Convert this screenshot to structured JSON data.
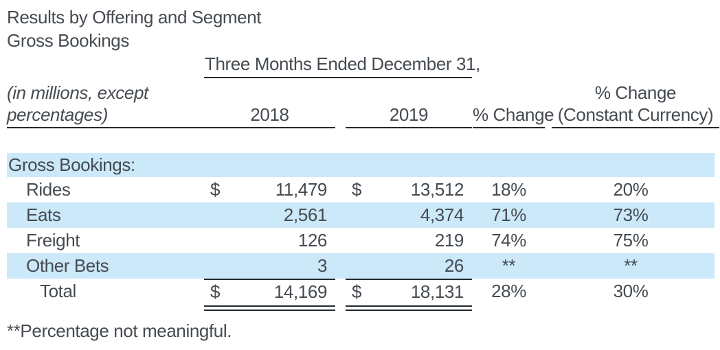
{
  "page": {
    "title": "Results by Offering and Segment",
    "subtitle": "Gross Bookings",
    "footnote": "**Percentage not meaningful."
  },
  "table": {
    "period_header": "Three Months Ended December 31,",
    "unit_note_line1": "(in millions, except",
    "unit_note_line2": "percentages)",
    "col_2018": "2018",
    "col_2019": "2019",
    "col_pct_change": "% Change",
    "col_cc_line1": "% Change",
    "col_cc_line2": "(Constant Currency)",
    "section_label": "Gross Bookings:",
    "currency_symbol": "$",
    "rows": [
      {
        "label": "Rides",
        "y2018": "11,479",
        "y2019": "13,512",
        "pct_change": "18%",
        "pct_change_cc": "20%"
      },
      {
        "label": "Eats",
        "y2018": "2,561",
        "y2019": "4,374",
        "pct_change": "71%",
        "pct_change_cc": "73%"
      },
      {
        "label": "Freight",
        "y2018": "126",
        "y2019": "219",
        "pct_change": "74%",
        "pct_change_cc": "75%"
      },
      {
        "label": "Other Bets",
        "y2018": "3",
        "y2019": "26",
        "pct_change": "**",
        "pct_change_cc": "**"
      }
    ],
    "total_row": {
      "label": "Total",
      "y2018": "14,169",
      "y2019": "18,131",
      "pct_change": "28%",
      "pct_change_cc": "30%"
    }
  },
  "colors": {
    "row_highlight": "#cce9fa",
    "text": "#454b51",
    "rule": "#24292d",
    "background": "#ffffff"
  }
}
